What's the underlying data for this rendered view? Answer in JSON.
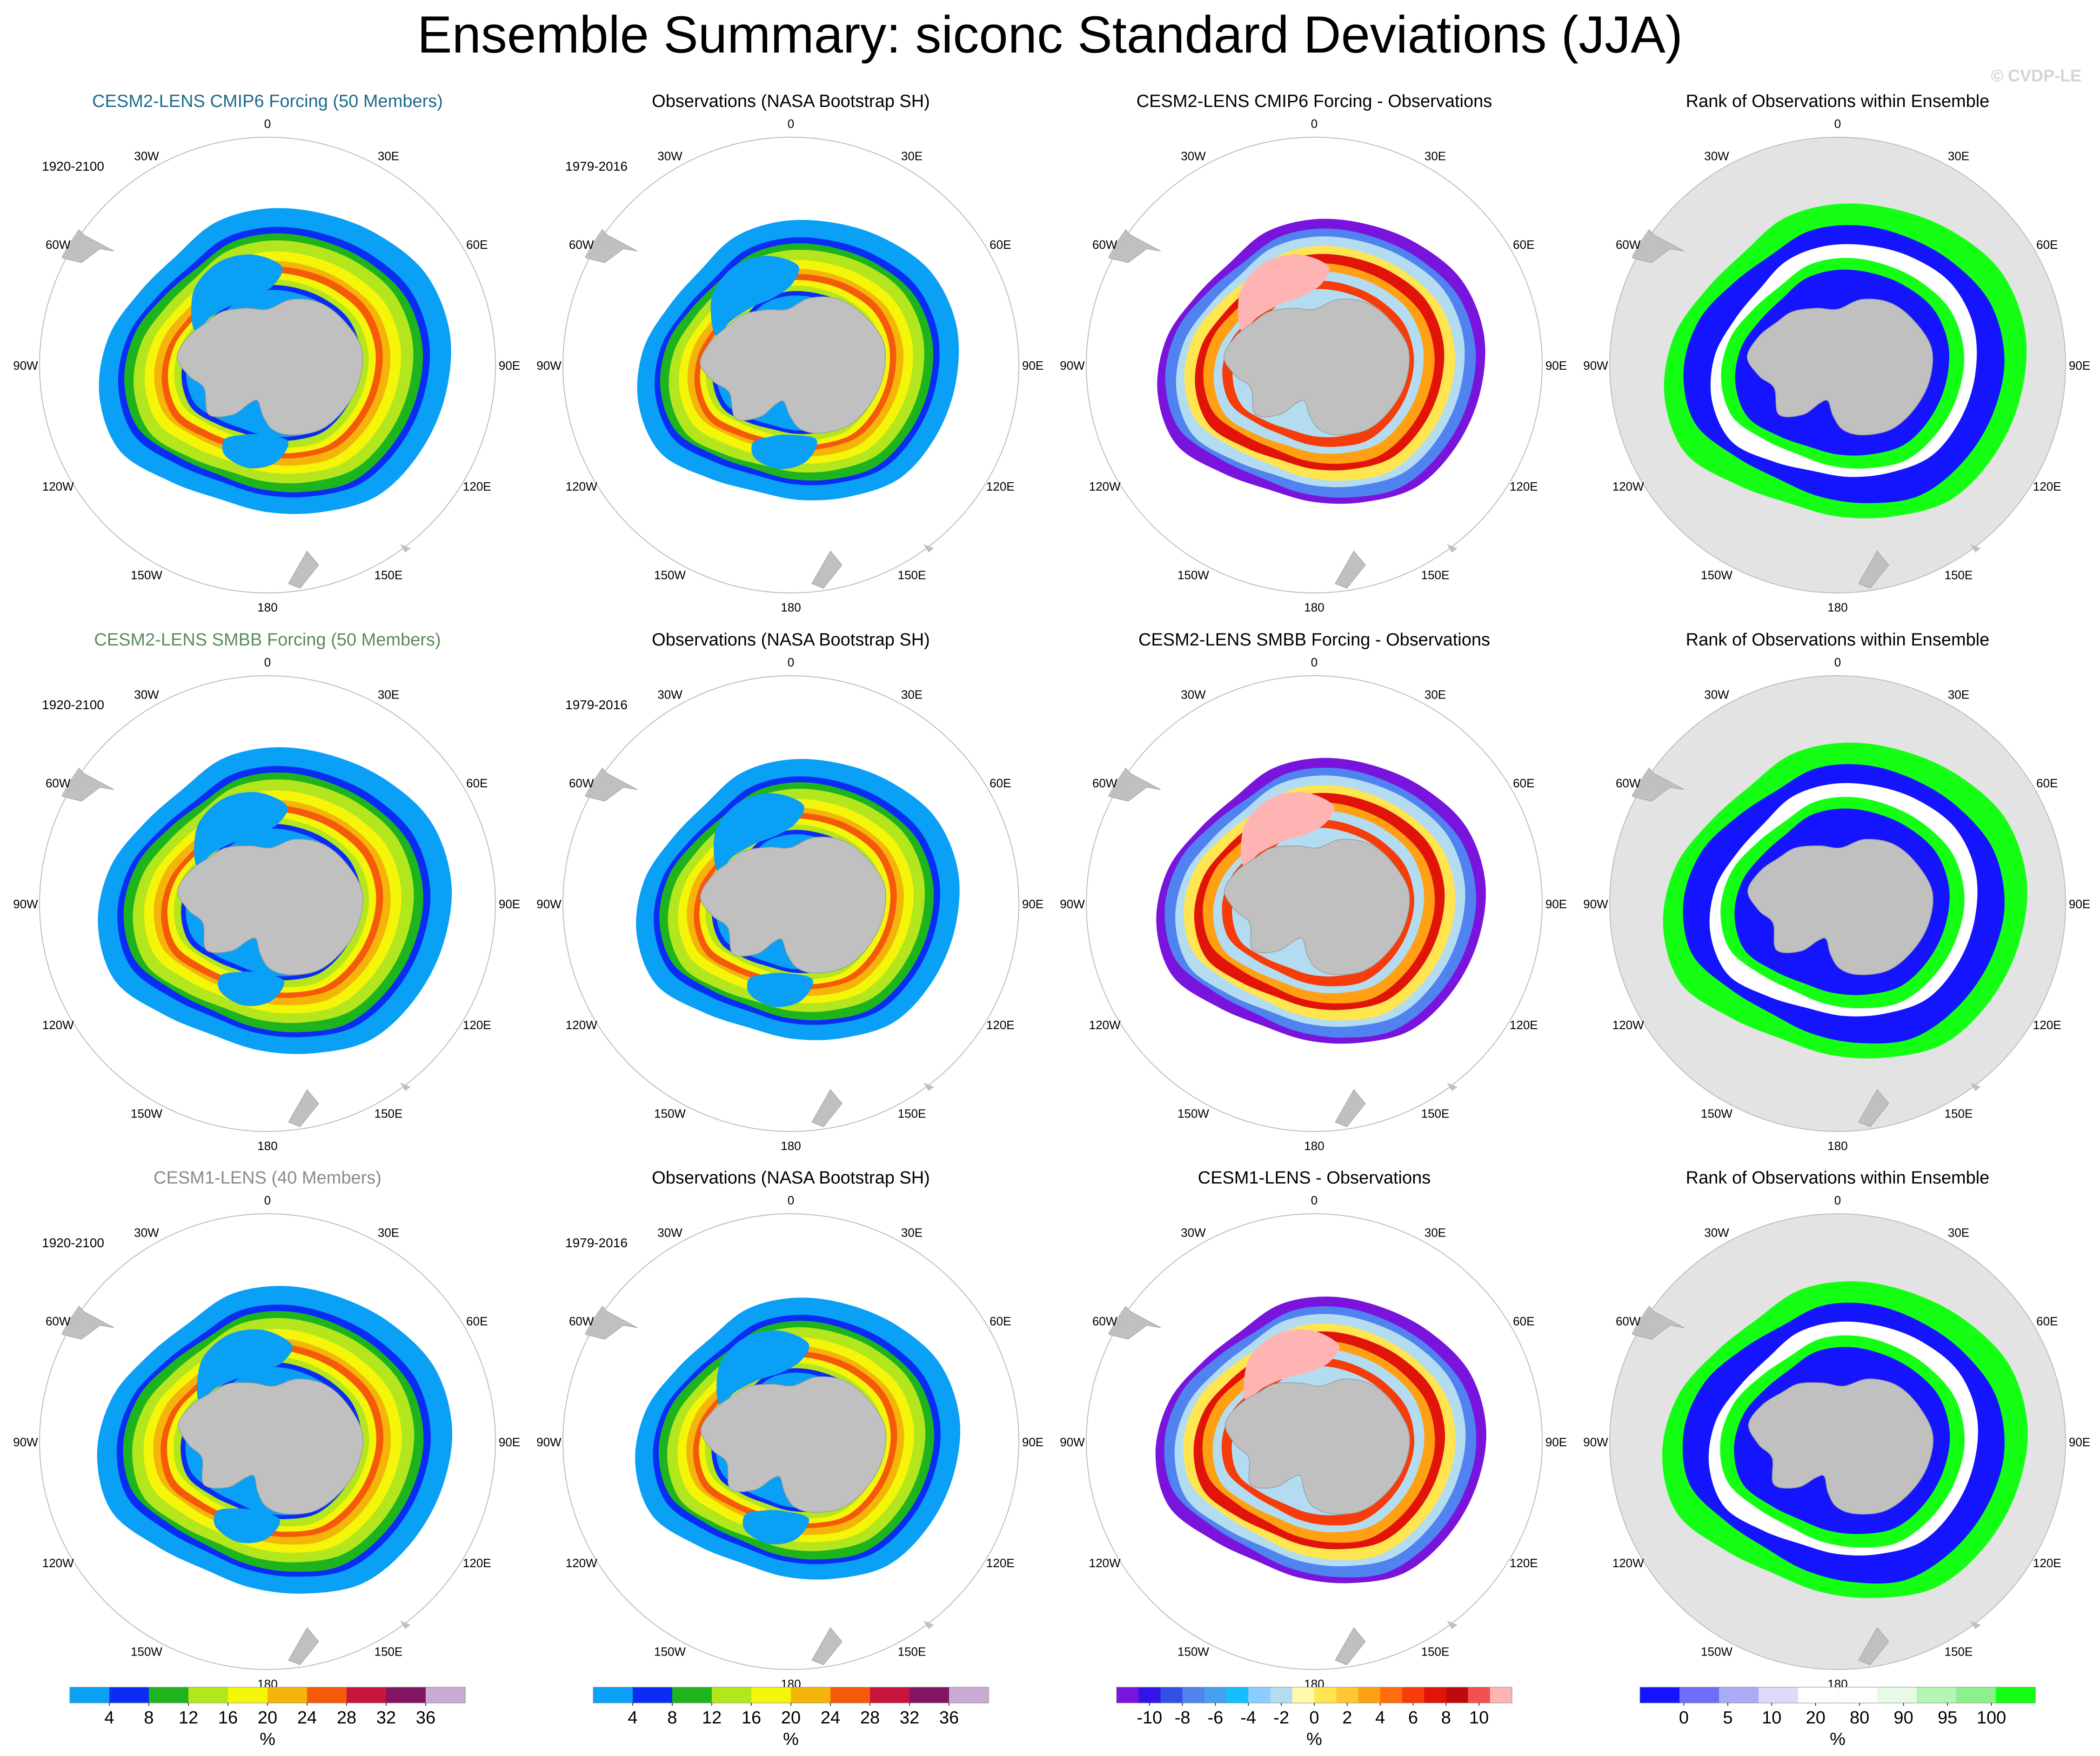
{
  "title": "Ensemble Summary: siconc Standard Deviations (JJA)",
  "watermark": "© CVDP-LE",
  "lon_labels": [
    "0",
    "30E",
    "60E",
    "90E",
    "120E",
    "150E",
    "180",
    "150W",
    "120W",
    "90W",
    "60W",
    "30W"
  ],
  "colors": {
    "land": "#c0c0c0",
    "ocean_rank": "#e3e3e3",
    "title_cmip6": "#1c6a8a",
    "title_smbb": "#5a8a5a",
    "title_cesm1": "#8a8a8a"
  },
  "rows": [
    {
      "panels": [
        {
          "title": "CESM2-LENS CMIP6 Forcing (50 Members)",
          "title_color": "#1c6a8a",
          "period": "1920-2100",
          "kind": "std"
        },
        {
          "title": "Observations (NASA Bootstrap SH)",
          "title_color": "#000000",
          "period": "1979-2016",
          "kind": "std"
        },
        {
          "title": "CESM2-LENS CMIP6 Forcing - Observations",
          "title_color": "#000000",
          "period": "",
          "kind": "diff"
        },
        {
          "title": "Rank of Observations within Ensemble",
          "title_color": "#000000",
          "period": "",
          "kind": "rank"
        }
      ]
    },
    {
      "panels": [
        {
          "title": "CESM2-LENS SMBB Forcing (50 Members)",
          "title_color": "#5a8a5a",
          "period": "1920-2100",
          "kind": "std"
        },
        {
          "title": "Observations (NASA Bootstrap SH)",
          "title_color": "#000000",
          "period": "1979-2016",
          "kind": "std"
        },
        {
          "title": "CESM2-LENS SMBB Forcing - Observations",
          "title_color": "#000000",
          "period": "",
          "kind": "diff"
        },
        {
          "title": "Rank of Observations within Ensemble",
          "title_color": "#000000",
          "period": "",
          "kind": "rank"
        }
      ]
    },
    {
      "panels": [
        {
          "title": "CESM1-LENS (40 Members)",
          "title_color": "#8a8a8a",
          "period": "1920-2100",
          "kind": "std"
        },
        {
          "title": "Observations (NASA Bootstrap SH)",
          "title_color": "#000000",
          "period": "1979-2016",
          "kind": "std"
        },
        {
          "title": "CESM1-LENS - Observations",
          "title_color": "#000000",
          "period": "",
          "kind": "diff"
        },
        {
          "title": "Rank of Observations within Ensemble",
          "title_color": "#000000",
          "period": "",
          "kind": "rank"
        }
      ]
    }
  ],
  "colorbars": [
    {
      "name": "std",
      "unit": "%",
      "colors": [
        "#0aa0f5",
        "#0a2cf5",
        "#1eb41e",
        "#b4e61e",
        "#f5f50a",
        "#f5b40a",
        "#f55a0a",
        "#c8143c",
        "#821464",
        "#c8aad2"
      ],
      "labels": [
        "4",
        "8",
        "12",
        "16",
        "20",
        "24",
        "28",
        "32",
        "36"
      ]
    },
    {
      "name": "std-obs",
      "unit": "%",
      "colors": [
        "#0aa0f5",
        "#0a2cf5",
        "#1eb41e",
        "#b4e61e",
        "#f5f50a",
        "#f5b40a",
        "#f55a0a",
        "#c8143c",
        "#821464",
        "#c8aad2"
      ],
      "labels": [
        "4",
        "8",
        "12",
        "16",
        "20",
        "24",
        "28",
        "32",
        "36"
      ]
    },
    {
      "name": "diff",
      "unit": "%",
      "colors": [
        "#7814dc",
        "#3214e6",
        "#3250e6",
        "#5082f0",
        "#46a0f0",
        "#14beff",
        "#8ccdff",
        "#b4dcf0",
        "#fffaaa",
        "#ffe650",
        "#ffc832",
        "#ffa014",
        "#ff6e0a",
        "#f53c0a",
        "#e1140a",
        "#be0a0a",
        "#f05050",
        "#ffb4b4"
      ],
      "labels": [
        "-10",
        "-8",
        "-6",
        "-4",
        "-2",
        "0",
        "2",
        "4",
        "6",
        "8",
        "10"
      ]
    },
    {
      "name": "rank",
      "unit": "%",
      "colors": [
        "#1414ff",
        "#6e6efa",
        "#aaaaf5",
        "#dcdcfa",
        "#ffffff",
        "#ffffff",
        "#e6fae6",
        "#b4f5b4",
        "#8cf08c",
        "#14ff14"
      ],
      "labels": [
        "0",
        "5",
        "10",
        "20",
        "80",
        "90",
        "95",
        "100"
      ]
    }
  ]
}
